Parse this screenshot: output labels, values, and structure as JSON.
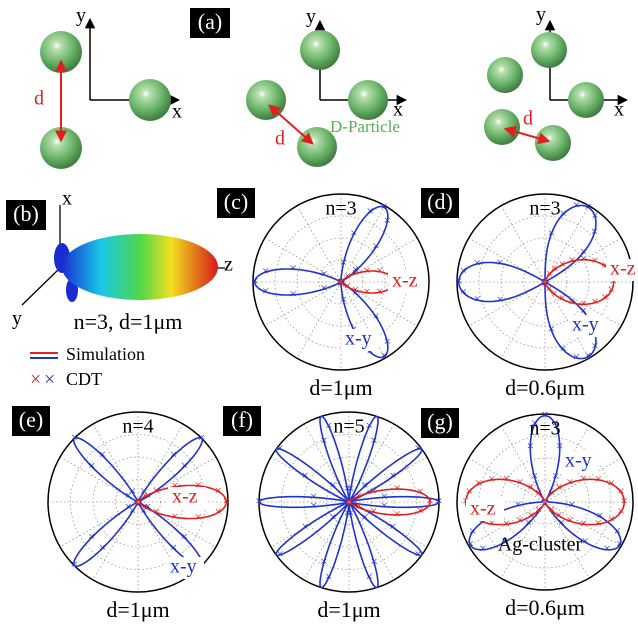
{
  "panel_a": {
    "label": "(a)",
    "diagrams": [
      {
        "x": "x",
        "y": "y",
        "d": "d"
      },
      {
        "x": "x",
        "y": "y",
        "d": "d",
        "note": "D-Particle"
      },
      {
        "x": "x",
        "y": "y",
        "d": "d"
      }
    ]
  },
  "panel_b": {
    "label": "(b)",
    "axes": {
      "x": "x",
      "y": "y",
      "z": "z"
    },
    "caption": "n=3, d=1μm"
  },
  "legend": {
    "line": "Simulation",
    "marker": "CDT"
  },
  "polar_panels": [
    {
      "label": "(c)",
      "title": "n=3",
      "xz": "x-z",
      "xy": "x-y",
      "caption": "d=1μm"
    },
    {
      "label": "(d)",
      "title": "n=3",
      "xz": "x-z",
      "xy": "x-y",
      "caption": "d=0.6μm"
    },
    {
      "label": "(e)",
      "title": "n=4",
      "xz": "x-z",
      "xy": "x-y",
      "caption": "d=1μm"
    },
    {
      "label": "(f)",
      "title": "n=5",
      "caption": "d=1μm"
    },
    {
      "label": "(g)",
      "title": "n=3",
      "xz": "x-z",
      "xy": "x-y",
      "note": "Ag-cluster",
      "caption": "d=0.6μm"
    }
  ]
}
